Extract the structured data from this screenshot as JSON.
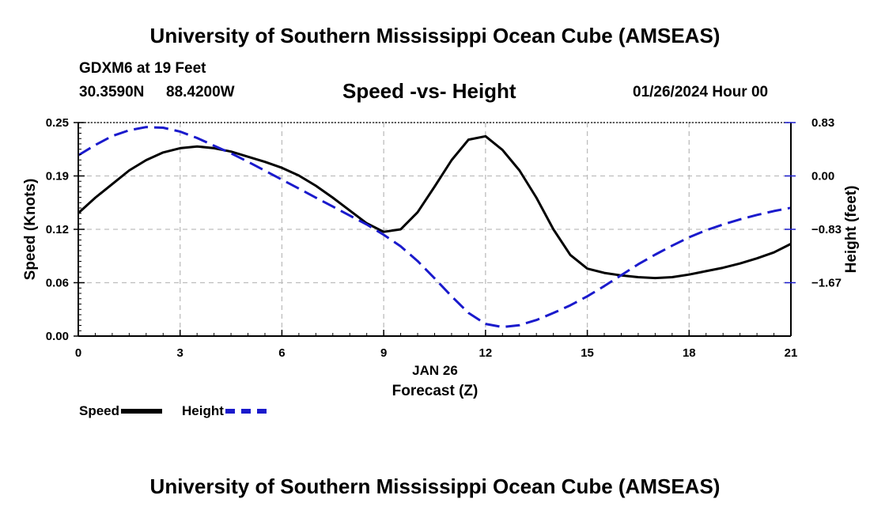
{
  "header": {
    "title": "University of Southern Mississippi Ocean Cube (AMSEAS)",
    "station": "GDXM6 at 19 Feet",
    "lat": "30.3590N",
    "lon": "88.4200W",
    "subtitle": "Speed -vs- Height",
    "datetime": "01/26/2024 Hour 00"
  },
  "footer": {
    "title": "University of Southern Mississippi Ocean Cube (AMSEAS)"
  },
  "legend": {
    "speed_label": "Speed",
    "height_label": "Height",
    "speed_color": "#000000",
    "height_color": "#1a1acc"
  },
  "chart_data": {
    "type": "line",
    "title": "Speed -vs- Height",
    "xlabel": "Forecast (Z)",
    "xlabel_date": "JAN 26",
    "ylabel": "Speed (Knots)",
    "y2label": "Height (feet)",
    "xlim": [
      0,
      21
    ],
    "ylim": [
      0,
      0.25
    ],
    "y2lim": [
      -2.5,
      0.83
    ],
    "grid": true,
    "x_ticks": [
      0,
      3,
      6,
      9,
      12,
      15,
      18,
      21
    ],
    "x_tick_labels": [
      "0",
      "3",
      "6",
      "9",
      "12",
      "15",
      "18",
      "21"
    ],
    "y_ticks": [
      0,
      0.0625,
      0.125,
      0.1875,
      0.25
    ],
    "y_tick_labels": [
      "0.00",
      "0.06",
      "0.12",
      "0.19",
      "0.25"
    ],
    "y2_tick_labels": [
      "0.83",
      "0.00",
      "−0.83",
      "−1.67"
    ],
    "series": [
      {
        "name": "Speed",
        "axis": "left",
        "color": "#000000",
        "dash": "solid",
        "x": [
          0,
          0.5,
          1,
          1.5,
          2,
          2.5,
          3,
          3.5,
          4,
          4.5,
          5,
          5.5,
          6,
          6.5,
          7,
          7.5,
          8,
          8.5,
          9,
          9.5,
          10,
          10.5,
          11,
          11.5,
          12,
          12.5,
          13,
          13.5,
          14,
          14.5,
          15,
          15.5,
          16,
          16.5,
          17,
          17.5,
          18,
          18.5,
          19,
          19.5,
          20,
          20.5,
          21
        ],
        "values": [
          0.144,
          0.162,
          0.178,
          0.194,
          0.206,
          0.215,
          0.22,
          0.222,
          0.22,
          0.216,
          0.21,
          0.204,
          0.197,
          0.188,
          0.176,
          0.162,
          0.147,
          0.132,
          0.122,
          0.125,
          0.145,
          0.175,
          0.206,
          0.23,
          0.234,
          0.218,
          0.194,
          0.162,
          0.125,
          0.095,
          0.079,
          0.074,
          0.071,
          0.069,
          0.068,
          0.069,
          0.072,
          0.076,
          0.08,
          0.085,
          0.091,
          0.098,
          0.108
        ]
      },
      {
        "name": "Height",
        "axis": "right",
        "color": "#1a1acc",
        "dash": "dashed",
        "x": [
          0,
          0.5,
          1,
          1.5,
          2,
          2.5,
          3,
          3.5,
          4,
          4.5,
          5,
          5.5,
          6,
          6.5,
          7,
          7.5,
          8,
          8.5,
          9,
          9.5,
          10,
          10.5,
          11,
          11.5,
          12,
          12.5,
          13,
          13.5,
          14,
          14.5,
          15,
          15.5,
          16,
          16.5,
          17,
          17.5,
          18,
          18.5,
          19,
          19.5,
          20,
          20.5,
          21
        ],
        "values": [
          0.32,
          0.48,
          0.62,
          0.71,
          0.76,
          0.75,
          0.69,
          0.59,
          0.47,
          0.35,
          0.22,
          0.08,
          -0.06,
          -0.2,
          -0.34,
          -0.48,
          -0.62,
          -0.76,
          -0.92,
          -1.1,
          -1.33,
          -1.6,
          -1.88,
          -2.14,
          -2.31,
          -2.36,
          -2.33,
          -2.25,
          -2.14,
          -2.02,
          -1.88,
          -1.72,
          -1.55,
          -1.38,
          -1.23,
          -1.09,
          -0.96,
          -0.85,
          -0.76,
          -0.68,
          -0.61,
          -0.55,
          -0.5
        ]
      }
    ]
  }
}
